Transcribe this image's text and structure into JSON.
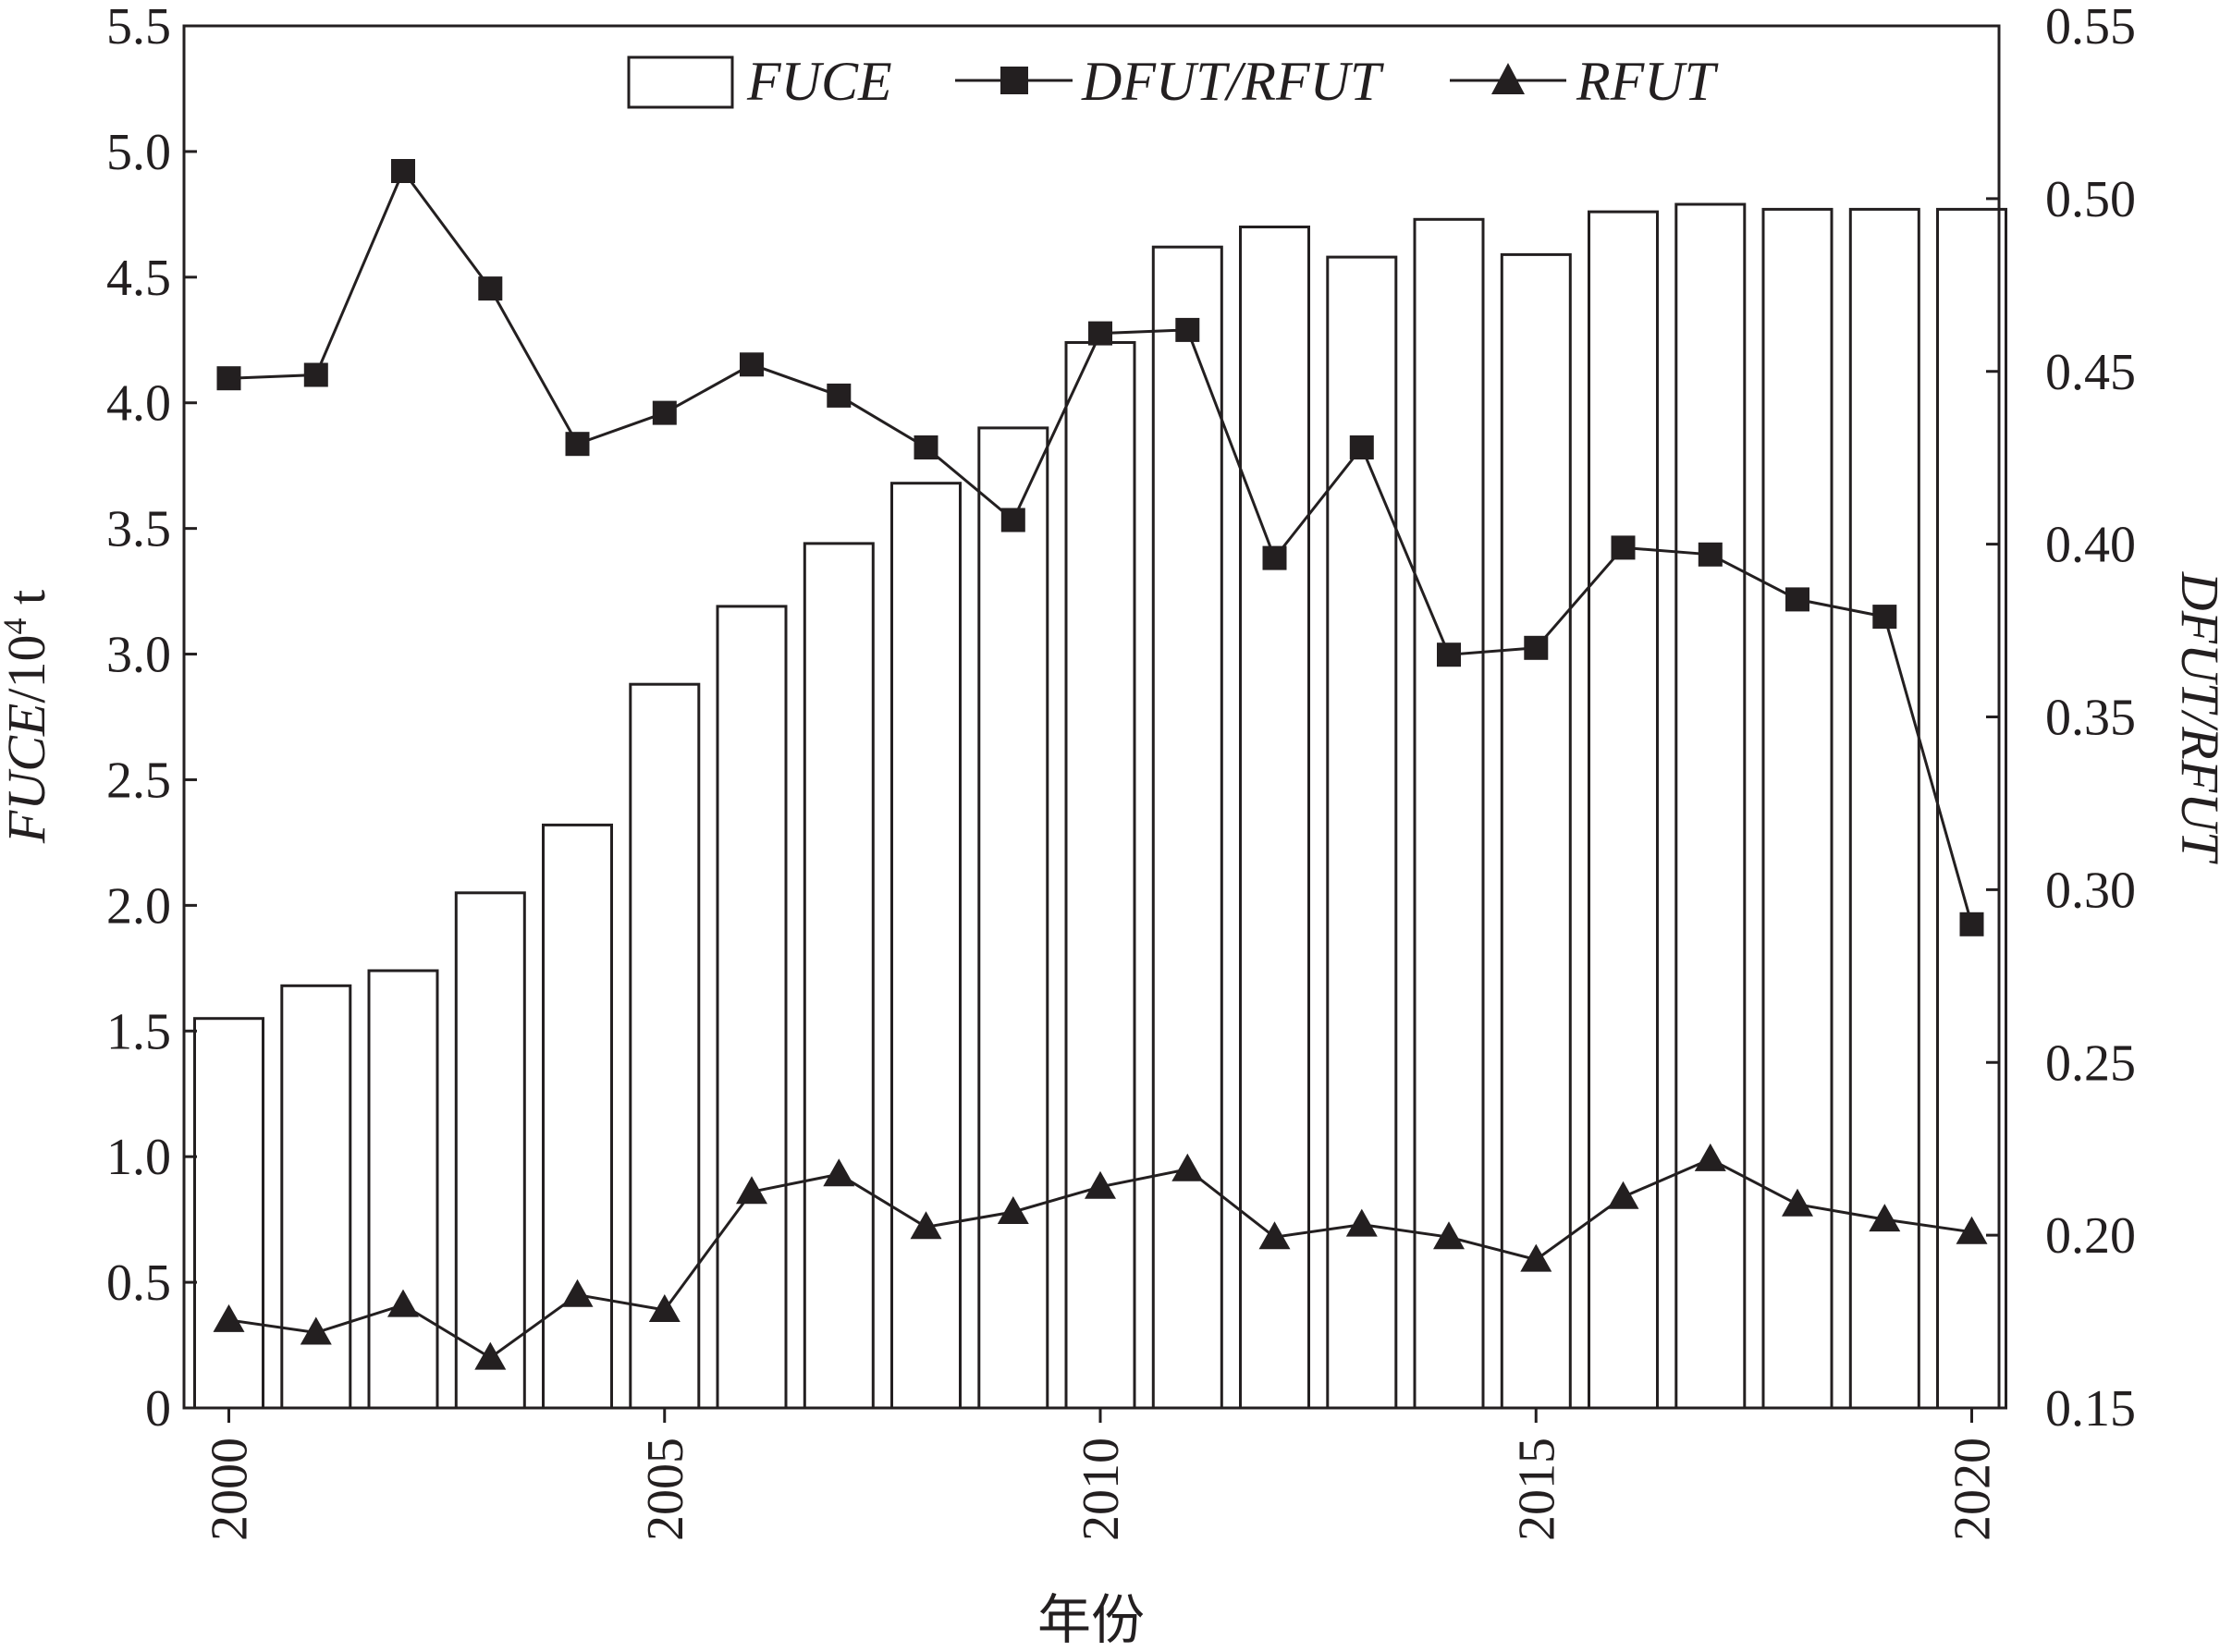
{
  "chart_data": {
    "type": "bar",
    "xlabel": "年份",
    "ylabel_left": {
      "prefix": "FUCE",
      "suffix": "/10",
      "superscript": "4",
      "unit": " t"
    },
    "ylabel_right": "DFUT/RFUT",
    "x": [
      2000,
      2001,
      2002,
      2003,
      2004,
      2005,
      2006,
      2007,
      2008,
      2009,
      2010,
      2011,
      2012,
      2013,
      2014,
      2015,
      2016,
      2017,
      2018,
      2019,
      2020
    ],
    "x_ticks": [
      2000,
      2005,
      2010,
      2015,
      2020
    ],
    "x_tick_labels": [
      "2000",
      "2005",
      "2010",
      "2015",
      "2020"
    ],
    "y_left_range": [
      0,
      5.5
    ],
    "y_left_ticks": [
      0,
      0.5,
      1.0,
      1.5,
      2.0,
      2.5,
      3.0,
      3.5,
      4.0,
      4.5,
      5.0,
      5.5
    ],
    "y_left_tick_labels": [
      "0",
      "0.5",
      "1.0",
      "1.5",
      "2.0",
      "2.5",
      "3.0",
      "3.5",
      "4.0",
      "4.5",
      "5.0",
      "5.5"
    ],
    "y_right_range": [
      0.15,
      0.55
    ],
    "y_right_ticks": [
      0.15,
      0.2,
      0.25,
      0.3,
      0.35,
      0.4,
      0.45,
      0.5,
      0.55
    ],
    "y_right_tick_labels": [
      "0.15",
      "0.20",
      "0.25",
      "0.30",
      "0.35",
      "0.40",
      "0.45",
      "0.50",
      "0.55"
    ],
    "legend_position": "top",
    "grid": false,
    "series": [
      {
        "name": "FUCE",
        "kind": "bar",
        "axis": "left",
        "values": [
          1.55,
          1.68,
          1.74,
          2.05,
          2.32,
          2.88,
          3.19,
          3.44,
          3.68,
          3.9,
          4.24,
          4.62,
          4.7,
          4.58,
          4.73,
          4.59,
          4.76,
          4.79,
          4.77,
          4.77,
          4.77
        ]
      },
      {
        "name": "DFUT/RFUT",
        "kind": "line",
        "marker": "square",
        "axis": "right",
        "values": [
          0.448,
          0.449,
          0.508,
          0.474,
          0.429,
          0.438,
          0.452,
          0.443,
          0.428,
          0.407,
          0.461,
          0.462,
          0.396,
          0.428,
          0.368,
          0.37,
          0.399,
          0.397,
          0.384,
          0.379,
          0.29
        ]
      },
      {
        "name": "RFUT",
        "kind": "line",
        "marker": "triangle",
        "axis": "left",
        "values": [
          0.35,
          0.3,
          0.41,
          0.2,
          0.45,
          0.39,
          0.86,
          0.93,
          0.72,
          0.78,
          0.88,
          0.95,
          0.68,
          0.73,
          0.68,
          0.59,
          0.84,
          0.99,
          0.81,
          0.75,
          0.7
        ]
      }
    ]
  }
}
